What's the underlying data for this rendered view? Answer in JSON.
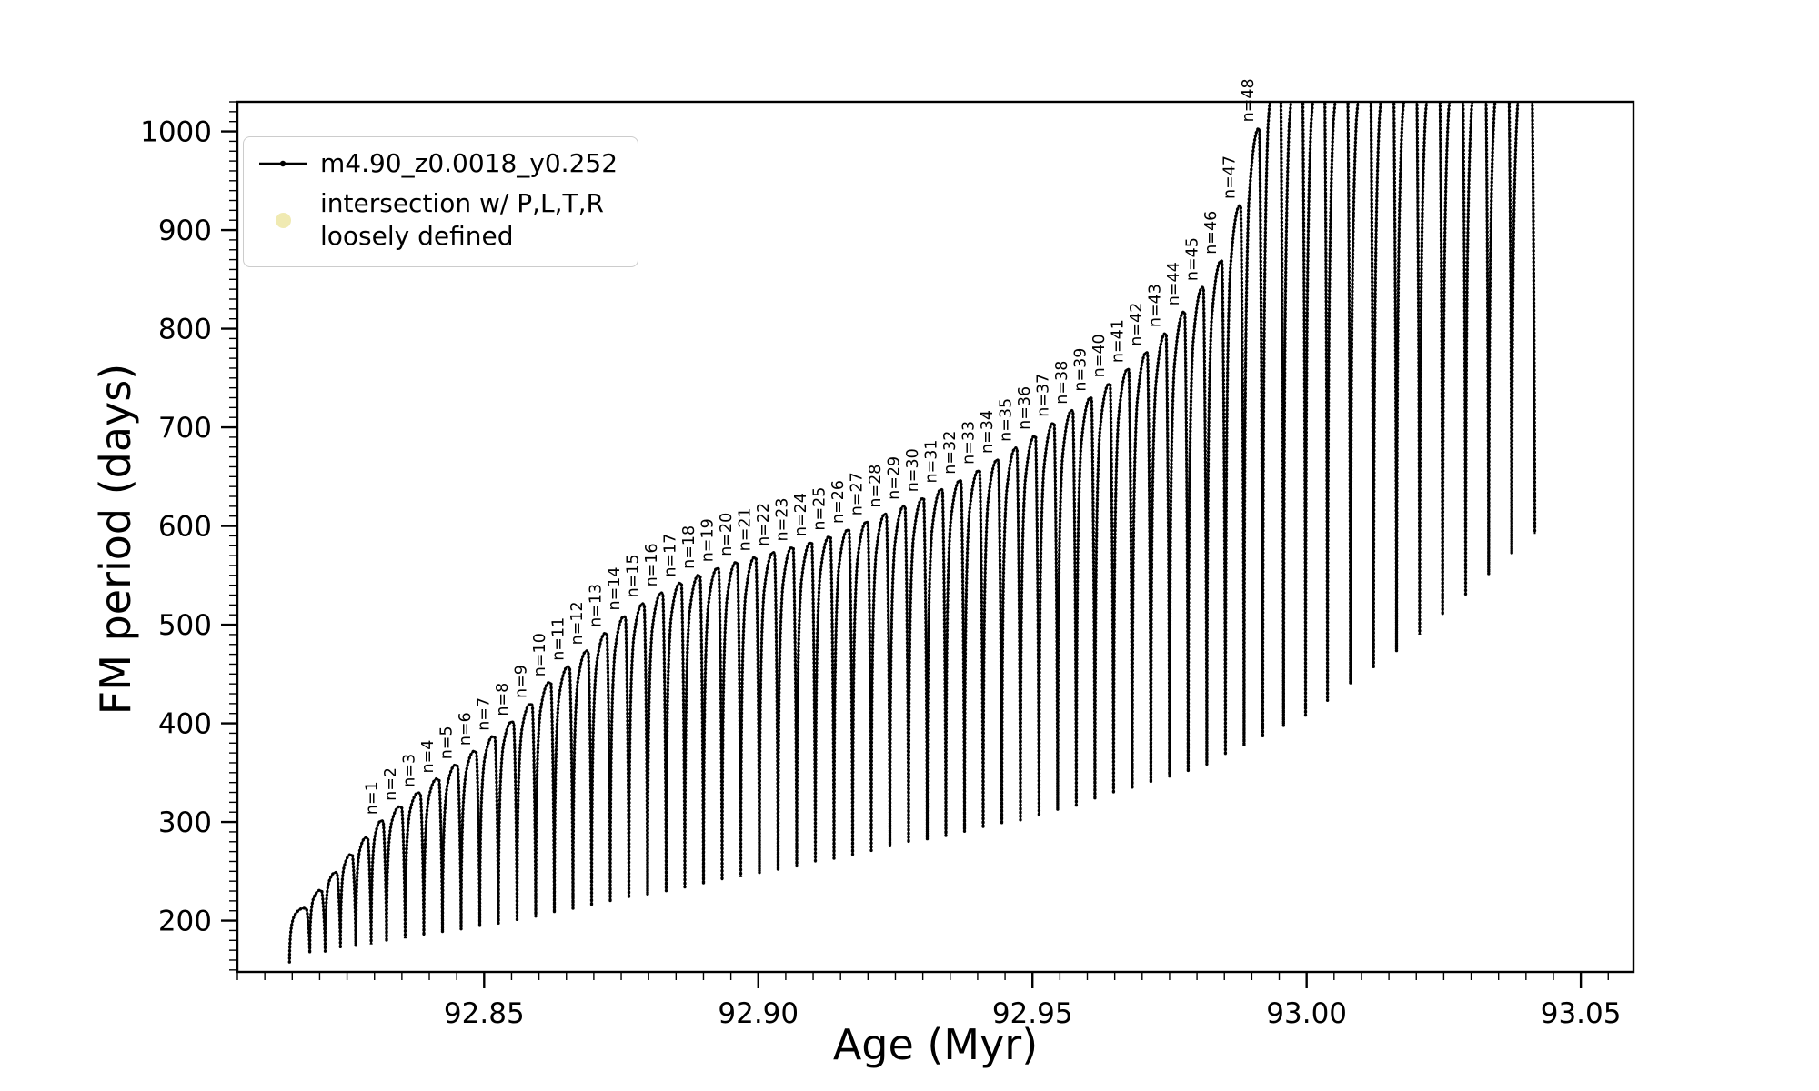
{
  "figure": {
    "background": "#ffffff",
    "xlabel": "Age (Myr)",
    "ylabel": "FM period (days)",
    "legend": {
      "entries": [
        {
          "label": "m4.90_z0.0018_y0.252",
          "marker": "line-dot",
          "color": "#000000"
        },
        {
          "label": "intersection w/ P,L,T,R\nloosely defined",
          "marker": "circle",
          "color": "#eee8aa"
        }
      ]
    }
  },
  "chart_data": {
    "type": "line",
    "title": "",
    "xlabel": "Age (Myr)",
    "ylabel": "FM period (days)",
    "xlim": [
      92.805,
      93.0596
    ],
    "ylim": [
      148,
      1030
    ],
    "grid": false,
    "legend_position": "upper left",
    "x_ticks": [
      {
        "v": 92.85,
        "label": "92.85"
      },
      {
        "v": 92.9,
        "label": "92.90"
      },
      {
        "v": 92.95,
        "label": "92.95"
      },
      {
        "v": 93.0,
        "label": "93.00"
      },
      {
        "v": 93.05,
        "label": "93.05"
      }
    ],
    "y_ticks": [
      {
        "v": 200,
        "label": "200"
      },
      {
        "v": 300,
        "label": "300"
      },
      {
        "v": 400,
        "label": "400"
      },
      {
        "v": 500,
        "label": "500"
      },
      {
        "v": 600,
        "label": "600"
      },
      {
        "v": 700,
        "label": "700"
      },
      {
        "v": 800,
        "label": "800"
      },
      {
        "v": 900,
        "label": "900"
      },
      {
        "v": 1000,
        "label": "1000"
      }
    ],
    "x_minor_step": 0.005,
    "y_minor_step": 10,
    "series": [
      {
        "name": "m4.90_z0.0018_y0.252",
        "color": "#000000",
        "marker": ".",
        "start_point": {
          "age": 92.8145,
          "period": 158
        },
        "scallops": [
          {
            "n": -4,
            "age": 92.8176,
            "peak": 212,
            "dip": 167,
            "label": ""
          },
          {
            "n": -3,
            "age": 92.8204,
            "peak": 230,
            "dip": 169,
            "label": ""
          },
          {
            "n": -2,
            "age": 92.8232,
            "peak": 248,
            "dip": 172,
            "label": ""
          },
          {
            "n": -1,
            "age": 92.826,
            "peak": 266,
            "dip": 174,
            "label": ""
          },
          {
            "n": 0,
            "age": 92.8288,
            "peak": 283,
            "dip": 176,
            "label": ""
          },
          {
            "n": 1,
            "age": 92.8316,
            "peak": 300,
            "dip": 179,
            "label": "n=1"
          },
          {
            "n": 2,
            "age": 92.835,
            "peak": 314,
            "dip": 182,
            "label": "n=2"
          },
          {
            "n": 3,
            "age": 92.8384,
            "peak": 328,
            "dip": 185,
            "label": "n=3"
          },
          {
            "n": 4,
            "age": 92.8418,
            "peak": 342,
            "dip": 188,
            "label": "n=4"
          },
          {
            "n": 5,
            "age": 92.8452,
            "peak": 356,
            "dip": 191,
            "label": "n=5"
          },
          {
            "n": 6,
            "age": 92.8486,
            "peak": 370,
            "dip": 194,
            "label": "n=6"
          },
          {
            "n": 7,
            "age": 92.852,
            "peak": 385,
            "dip": 197,
            "label": "n=7"
          },
          {
            "n": 8,
            "age": 92.8554,
            "peak": 400,
            "dip": 201,
            "label": "n=8"
          },
          {
            "n": 9,
            "age": 92.8588,
            "peak": 418,
            "dip": 204,
            "label": "n=9"
          },
          {
            "n": 10,
            "age": 92.8622,
            "peak": 440,
            "dip": 208,
            "label": "n=10"
          },
          {
            "n": 11,
            "age": 92.8656,
            "peak": 456,
            "dip": 212,
            "label": "n=11"
          },
          {
            "n": 12,
            "age": 92.869,
            "peak": 472,
            "dip": 215,
            "label": "n=12"
          },
          {
            "n": 13,
            "age": 92.8724,
            "peak": 490,
            "dip": 219,
            "label": "n=13"
          },
          {
            "n": 14,
            "age": 92.8758,
            "peak": 507,
            "dip": 223,
            "label": "n=14"
          },
          {
            "n": 15,
            "age": 92.8792,
            "peak": 520,
            "dip": 226,
            "label": "n=15"
          },
          {
            "n": 16,
            "age": 92.8826,
            "peak": 531,
            "dip": 230,
            "label": "n=16"
          },
          {
            "n": 17,
            "age": 92.886,
            "peak": 541,
            "dip": 234,
            "label": "n=17"
          },
          {
            "n": 18,
            "age": 92.8894,
            "peak": 549,
            "dip": 237,
            "label": "n=18"
          },
          {
            "n": 19,
            "age": 92.8928,
            "peak": 556,
            "dip": 241,
            "label": "n=19"
          },
          {
            "n": 20,
            "age": 92.8962,
            "peak": 562,
            "dip": 244,
            "label": "n=20"
          },
          {
            "n": 21,
            "age": 92.8996,
            "peak": 567,
            "dip": 248,
            "label": "n=21"
          },
          {
            "n": 22,
            "age": 92.903,
            "peak": 572,
            "dip": 251,
            "label": "n=22"
          },
          {
            "n": 23,
            "age": 92.9064,
            "peak": 577,
            "dip": 255,
            "label": "n=23"
          },
          {
            "n": 24,
            "age": 92.9098,
            "peak": 582,
            "dip": 259,
            "label": "n=24"
          },
          {
            "n": 25,
            "age": 92.9132,
            "peak": 588,
            "dip": 263,
            "label": "n=25"
          },
          {
            "n": 26,
            "age": 92.9166,
            "peak": 595,
            "dip": 267,
            "label": "n=26"
          },
          {
            "n": 27,
            "age": 92.92,
            "peak": 603,
            "dip": 271,
            "label": "n=27"
          },
          {
            "n": 28,
            "age": 92.9234,
            "peak": 611,
            "dip": 275,
            "label": "n=28"
          },
          {
            "n": 29,
            "age": 92.9268,
            "peak": 619,
            "dip": 279,
            "label": "n=29"
          },
          {
            "n": 30,
            "age": 92.9302,
            "peak": 627,
            "dip": 282,
            "label": "n=30"
          },
          {
            "n": 31,
            "age": 92.9336,
            "peak": 636,
            "dip": 286,
            "label": "n=31"
          },
          {
            "n": 32,
            "age": 92.937,
            "peak": 645,
            "dip": 290,
            "label": "n=32"
          },
          {
            "n": 33,
            "age": 92.9404,
            "peak": 655,
            "dip": 294,
            "label": "n=33"
          },
          {
            "n": 34,
            "age": 92.9438,
            "peak": 666,
            "dip": 298,
            "label": "n=34"
          },
          {
            "n": 35,
            "age": 92.9472,
            "peak": 678,
            "dip": 302,
            "label": "n=35"
          },
          {
            "n": 36,
            "age": 92.9506,
            "peak": 690,
            "dip": 306,
            "label": "n=36"
          },
          {
            "n": 37,
            "age": 92.954,
            "peak": 703,
            "dip": 312,
            "label": "n=37"
          },
          {
            "n": 38,
            "age": 92.9574,
            "peak": 716,
            "dip": 317,
            "label": "n=38"
          },
          {
            "n": 39,
            "age": 92.9608,
            "peak": 729,
            "dip": 323,
            "label": "n=39"
          },
          {
            "n": 40,
            "age": 92.9642,
            "peak": 743,
            "dip": 329,
            "label": "n=40"
          },
          {
            "n": 41,
            "age": 92.9676,
            "peak": 758,
            "dip": 334,
            "label": "n=41"
          },
          {
            "n": 42,
            "age": 92.971,
            "peak": 775,
            "dip": 340,
            "label": "n=42"
          },
          {
            "n": 43,
            "age": 92.9744,
            "peak": 794,
            "dip": 346,
            "label": "n=43"
          },
          {
            "n": 44,
            "age": 92.9778,
            "peak": 816,
            "dip": 351,
            "label": "n=44"
          },
          {
            "n": 45,
            "age": 92.9812,
            "peak": 841,
            "dip": 358,
            "label": "n=45"
          },
          {
            "n": 46,
            "age": 92.9846,
            "peak": 868,
            "dip": 368,
            "label": "n=46"
          },
          {
            "n": 47,
            "age": 92.988,
            "peak": 924,
            "dip": 377,
            "label": "n=47"
          },
          {
            "n": 48,
            "age": 92.9914,
            "peak": 1002,
            "dip": 386,
            "label": "n=48"
          },
          {
            "n": 49,
            "age": 92.9952,
            "peak": 1090,
            "dip": 397,
            "label": ""
          },
          {
            "n": 50,
            "age": 92.9992,
            "peak": 1090,
            "dip": 408,
            "label": ""
          },
          {
            "n": 51,
            "age": 93.0032,
            "peak": 1090,
            "dip": 423,
            "label": ""
          },
          {
            "n": 52,
            "age": 93.0074,
            "peak": 1090,
            "dip": 440,
            "label": ""
          },
          {
            "n": 53,
            "age": 93.0116,
            "peak": 1090,
            "dip": 456,
            "label": ""
          },
          {
            "n": 54,
            "age": 93.0158,
            "peak": 1090,
            "dip": 473,
            "label": ""
          },
          {
            "n": 55,
            "age": 93.02,
            "peak": 1090,
            "dip": 490,
            "label": ""
          },
          {
            "n": 56,
            "age": 93.0242,
            "peak": 1090,
            "dip": 510,
            "label": ""
          },
          {
            "n": 57,
            "age": 93.0284,
            "peak": 1090,
            "dip": 531,
            "label": ""
          },
          {
            "n": 58,
            "age": 93.0326,
            "peak": 1090,
            "dip": 551,
            "label": ""
          },
          {
            "n": 59,
            "age": 93.0368,
            "peak": 1090,
            "dip": 572,
            "label": ""
          },
          {
            "n": 60,
            "age": 93.041,
            "peak": 1090,
            "dip": 592,
            "label": ""
          }
        ]
      }
    ]
  }
}
